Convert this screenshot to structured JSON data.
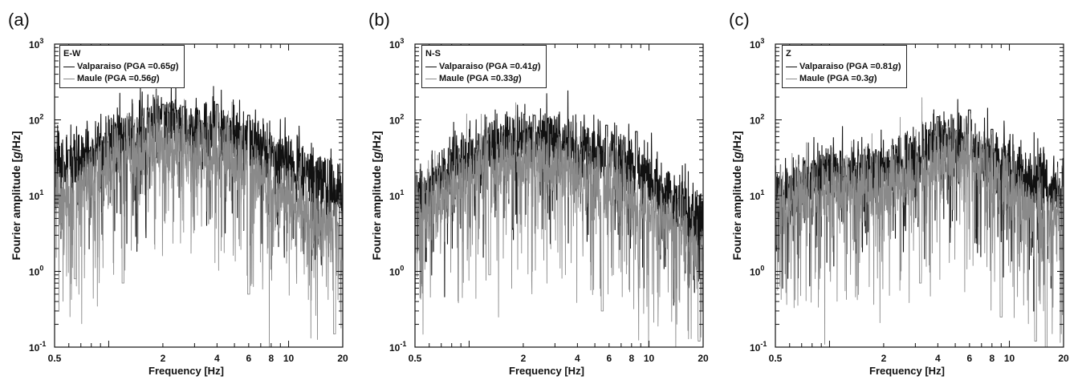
{
  "chart_data": [
    {
      "type": "line",
      "panel_label": "(a)",
      "component": "E-W",
      "xlabel": "Frequency [Hz]",
      "ylabel_pre": "Fourier amplitude [",
      "ylabel_unit": "g",
      "ylabel_post": "/Hz]",
      "x_scale": "log",
      "y_scale": "log",
      "xlim": [
        0.5,
        20
      ],
      "ylim": [
        0.1,
        1000
      ],
      "xticks": [
        "0.5",
        "2",
        "4",
        "6",
        "8",
        "10",
        "20"
      ],
      "yticks_exp": [
        "-1",
        "0",
        "1",
        "2",
        "3"
      ],
      "legend_position": "top-left",
      "series": [
        {
          "name": "Valparaiso",
          "pga_prefix": "(PGA = ",
          "pga": "0.65",
          "pga_unit": "g",
          "pga_suffix": ")",
          "color": "#111111",
          "x": [
            0.5,
            0.6,
            0.8,
            1.0,
            1.3,
            1.6,
            2.0,
            2.5,
            3.0,
            4.0,
            5.0,
            6.0,
            8.0,
            10.0,
            14.0,
            20.0
          ],
          "y": [
            30,
            20,
            38,
            48,
            58,
            78,
            95,
            82,
            75,
            72,
            60,
            52,
            38,
            28,
            17,
            10
          ],
          "peaks": [
            [
              0.6,
              40
            ],
            [
              2.0,
              160
            ],
            [
              2.6,
              150
            ],
            [
              4.0,
              160
            ],
            [
              6.0,
              115
            ]
          ]
        },
        {
          "name": "Maule",
          "pga_prefix": "(PGA = ",
          "pga": "0.56",
          "pga_unit": "g",
          "pga_suffix": ")",
          "color": "#8a8a8a",
          "x": [
            0.5,
            0.6,
            0.8,
            1.0,
            1.3,
            1.6,
            2.0,
            2.5,
            3.0,
            4.0,
            5.0,
            6.0,
            8.0,
            10.0,
            14.0,
            20.0
          ],
          "y": [
            14,
            9,
            20,
            28,
            34,
            42,
            46,
            40,
            36,
            35,
            28,
            22,
            14,
            9,
            5,
            3
          ],
          "peaks": [
            [
              0.65,
              0.8
            ],
            [
              1.2,
              0.7
            ],
            [
              6.0,
              0.5
            ],
            [
              18,
              0.15
            ]
          ]
        }
      ]
    },
    {
      "type": "line",
      "panel_label": "(b)",
      "component": "N-S",
      "xlabel": "Frequency [Hz]",
      "ylabel_pre": "Fourier amplitude [",
      "ylabel_unit": "g",
      "ylabel_post": "/Hz]",
      "x_scale": "log",
      "y_scale": "log",
      "xlim": [
        0.5,
        20
      ],
      "ylim": [
        0.1,
        1000
      ],
      "xticks": [
        "0.5",
        "2",
        "4",
        "6",
        "8",
        "10",
        "20"
      ],
      "yticks_exp": [
        "-1",
        "0",
        "1",
        "2",
        "3"
      ],
      "legend_position": "top-left",
      "series": [
        {
          "name": "Valparaiso",
          "pga_prefix": "(PGA = ",
          "pga": "0.41",
          "pga_unit": "g",
          "pga_suffix": ")",
          "color": "#111111",
          "x": [
            0.5,
            0.6,
            0.8,
            1.0,
            1.3,
            1.6,
            2.0,
            2.5,
            3.0,
            4.0,
            5.0,
            6.0,
            8.0,
            10.0,
            14.0,
            20.0
          ],
          "y": [
            8,
            12,
            22,
            30,
            42,
            52,
            58,
            56,
            50,
            40,
            34,
            32,
            24,
            16,
            9,
            4
          ],
          "peaks": [
            [
              2.3,
              115
            ],
            [
              5.8,
              85
            ],
            [
              8.5,
              70
            ]
          ]
        },
        {
          "name": "Maule",
          "pga_prefix": "(PGA = ",
          "pga": "0.33",
          "pga_unit": "g",
          "pga_suffix": ")",
          "color": "#8a8a8a",
          "x": [
            0.5,
            0.6,
            0.8,
            1.0,
            1.3,
            1.6,
            2.0,
            2.5,
            3.0,
            4.0,
            5.0,
            6.0,
            8.0,
            10.0,
            14.0,
            20.0
          ],
          "y": [
            5,
            7,
            13,
            18,
            24,
            30,
            32,
            30,
            26,
            20,
            17,
            15,
            10,
            7,
            4,
            1.5
          ],
          "peaks": [
            [
              1.3,
              0.9
            ],
            [
              5.5,
              0.3
            ],
            [
              19,
              0.12
            ]
          ]
        }
      ]
    },
    {
      "type": "line",
      "panel_label": "(c)",
      "component": "Z",
      "xlabel": "Frequency [Hz]",
      "ylabel_pre": "Fourier amplitude [",
      "ylabel_unit": "g",
      "ylabel_post": "/Hz]",
      "x_scale": "log",
      "y_scale": "log",
      "xlim": [
        0.5,
        20
      ],
      "ylim": [
        0.1,
        1000
      ],
      "xticks": [
        "0.5",
        "2",
        "4",
        "6",
        "8",
        "10",
        "20"
      ],
      "yticks_exp": [
        "-1",
        "0",
        "1",
        "2",
        "3"
      ],
      "legend_position": "top-left",
      "series": [
        {
          "name": "Valparaiso",
          "pga_prefix": "(PGA = ",
          "pga": "0.81",
          "pga_unit": "g",
          "pga_suffix": ")",
          "color": "#111111",
          "x": [
            0.5,
            0.6,
            0.8,
            1.0,
            1.3,
            1.6,
            2.0,
            2.5,
            3.0,
            4.0,
            5.0,
            6.0,
            8.0,
            10.0,
            14.0,
            20.0
          ],
          "y": [
            10,
            11,
            16,
            19,
            20,
            20,
            22,
            25,
            32,
            48,
            52,
            45,
            32,
            22,
            15,
            11
          ],
          "peaks": [
            [
              4.0,
              110
            ],
            [
              6.0,
              135
            ],
            [
              8.0,
              75
            ]
          ]
        },
        {
          "name": "Maule",
          "pga_prefix": "(PGA = ",
          "pga": "0.3",
          "pga_unit": "g",
          "pga_suffix": ")",
          "color": "#8a8a8a",
          "x": [
            0.5,
            0.6,
            0.8,
            1.0,
            1.3,
            1.6,
            2.0,
            2.5,
            3.0,
            4.0,
            5.0,
            6.0,
            8.0,
            10.0,
            14.0,
            20.0
          ],
          "y": [
            7,
            8,
            11,
            13,
            13,
            13,
            14,
            16,
            20,
            30,
            32,
            28,
            18,
            12,
            7,
            4
          ],
          "peaks": [
            [
              3.2,
              0.7
            ],
            [
              9.0,
              0.25
            ],
            [
              14,
              0.12
            ],
            [
              16,
              0.1
            ]
          ]
        }
      ]
    }
  ]
}
